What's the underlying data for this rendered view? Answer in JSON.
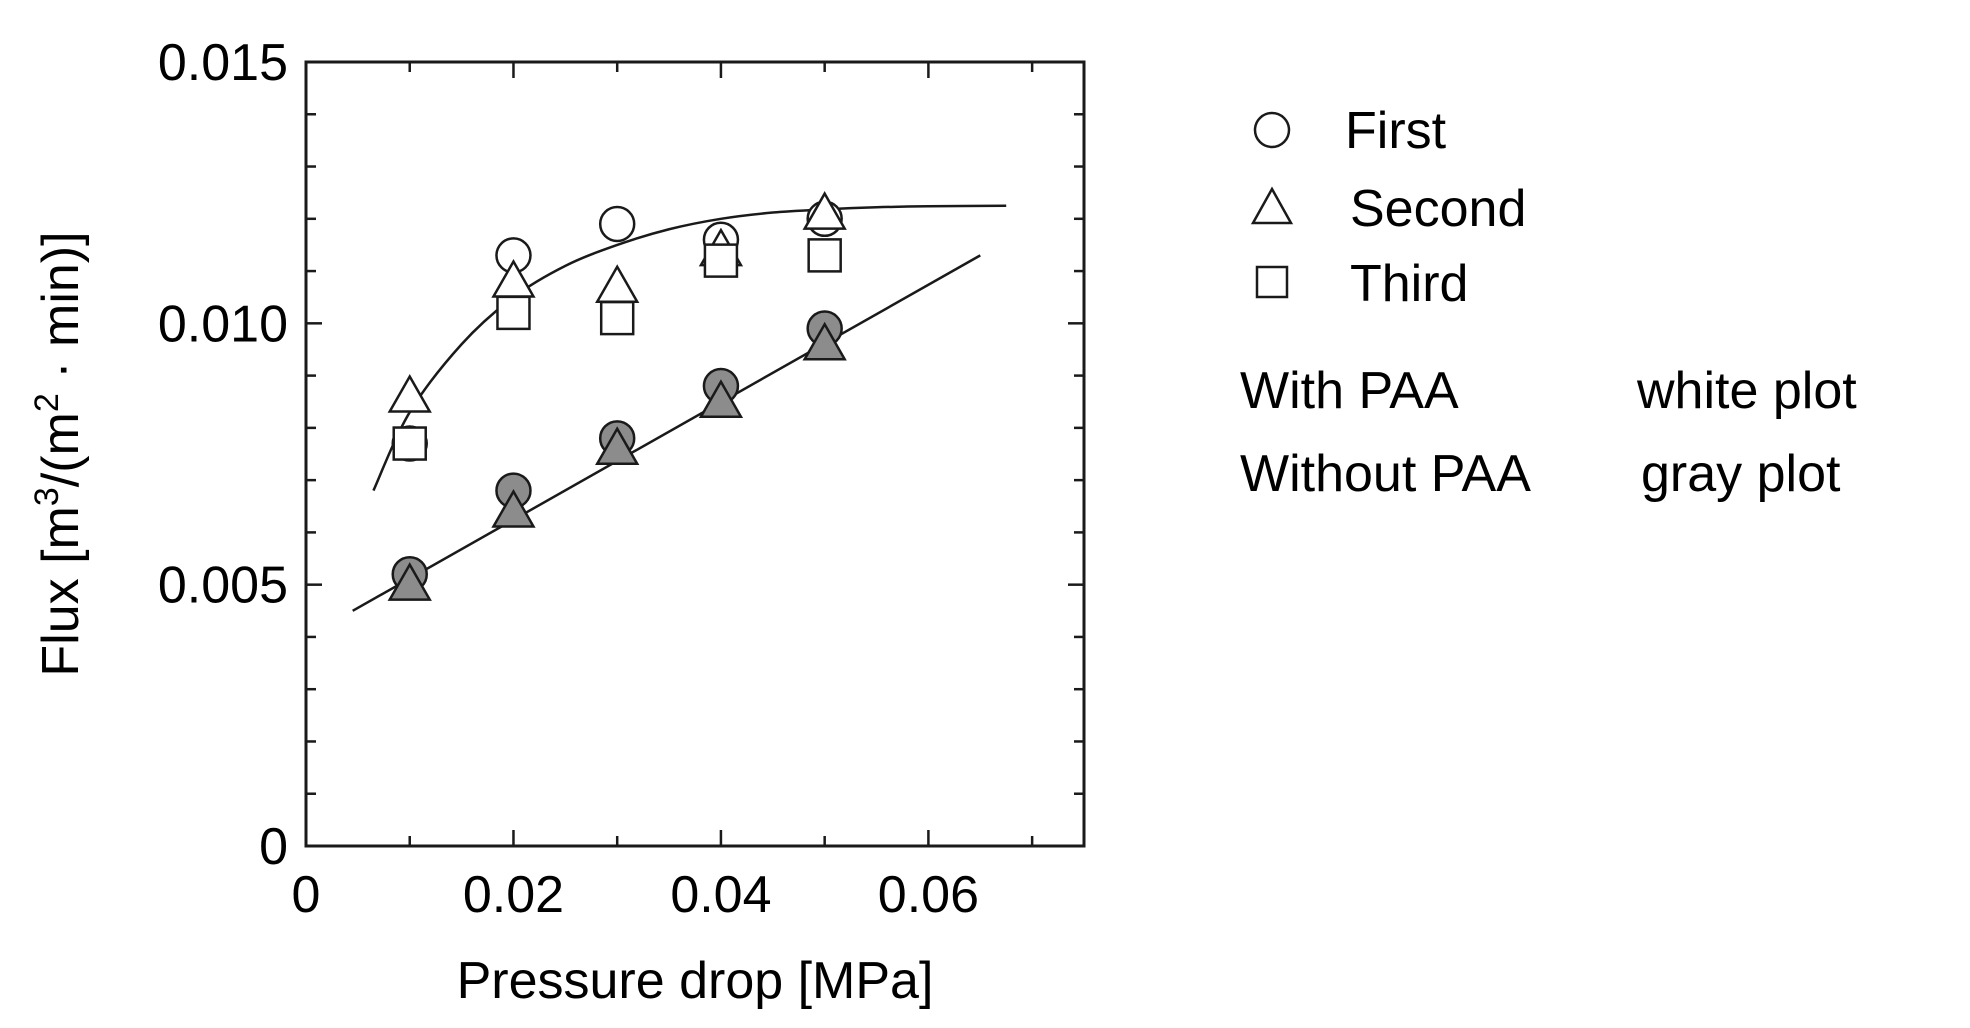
{
  "chart_data": {
    "type": "scatter",
    "xlabel": "Pressure drop [MPa]",
    "ylabel": {
      "prefix": "Flux [m",
      "sup1": "3",
      "mid": "/(m",
      "sup2": "2",
      "suffix": " · min)]"
    },
    "xlim": [
      0,
      0.075
    ],
    "ylim": [
      0,
      0.015
    ],
    "x_ticks": [
      "0",
      "0.02",
      "0.04",
      "0.06"
    ],
    "x_tick_values": [
      0,
      0.02,
      0.04,
      0.06
    ],
    "y_ticks": [
      "0",
      "0.005",
      "0.010",
      "0.015"
    ],
    "y_tick_values": [
      0,
      0.005,
      0.01,
      0.015
    ],
    "x_minor_step": 0.01,
    "y_minor_step": 0.001,
    "grid": false,
    "legend_position": "right",
    "legend": {
      "markers": [
        {
          "marker": "circle",
          "label": "First"
        },
        {
          "marker": "triangle",
          "label": "Second"
        },
        {
          "marker": "square",
          "label": "Third"
        }
      ],
      "notes": [
        {
          "label": "With PAA",
          "value": "white plot"
        },
        {
          "label": "Without PAA",
          "value": "gray plot"
        }
      ]
    },
    "series": [
      {
        "marker": "circle",
        "fill": "white",
        "x": [
          0.01,
          0.02,
          0.03,
          0.04,
          0.05
        ],
        "y": [
          0.0077,
          0.0113,
          0.0119,
          0.0116,
          0.012
        ]
      },
      {
        "marker": "triangle",
        "fill": "white",
        "x": [
          0.01,
          0.02,
          0.03,
          0.04,
          0.05
        ],
        "y": [
          0.0086,
          0.0108,
          0.0107,
          0.0114,
          0.0121
        ]
      },
      {
        "marker": "square",
        "fill": "white",
        "x": [
          0.01,
          0.02,
          0.03,
          0.04,
          0.05
        ],
        "y": [
          0.0077,
          0.0102,
          0.0101,
          0.0112,
          0.0113
        ]
      },
      {
        "marker": "circle",
        "fill": "gray",
        "x": [
          0.01,
          0.02,
          0.03,
          0.04,
          0.05
        ],
        "y": [
          0.0052,
          0.0068,
          0.0078,
          0.0088,
          0.0099
        ]
      },
      {
        "marker": "triangle",
        "fill": "gray",
        "x": [
          0.01,
          0.02,
          0.03,
          0.04,
          0.05
        ],
        "y": [
          0.005,
          0.0064,
          0.0076,
          0.0085,
          0.0096
        ]
      }
    ],
    "fits": [
      {
        "kind": "curve",
        "x": [
          0.0065,
          0.01,
          0.015,
          0.02,
          0.025,
          0.03,
          0.035,
          0.04,
          0.045,
          0.05,
          0.055,
          0.06,
          0.0675
        ],
        "y": [
          0.0068,
          0.0083,
          0.0096,
          0.0105,
          0.0111,
          0.0115,
          0.0118,
          0.012,
          0.01212,
          0.01218,
          0.01222,
          0.01224,
          0.01225
        ]
      },
      {
        "kind": "line",
        "x": [
          0.0045,
          0.065
        ],
        "y": [
          0.0045,
          0.0113
        ]
      }
    ],
    "colors": {
      "axis": "#1a1a1a",
      "white_marker_fill": "#ffffff",
      "gray_marker_fill": "#8c8c8c",
      "marker_stroke": "#1a1a1a",
      "fit_line": "#1a1a1a"
    }
  }
}
